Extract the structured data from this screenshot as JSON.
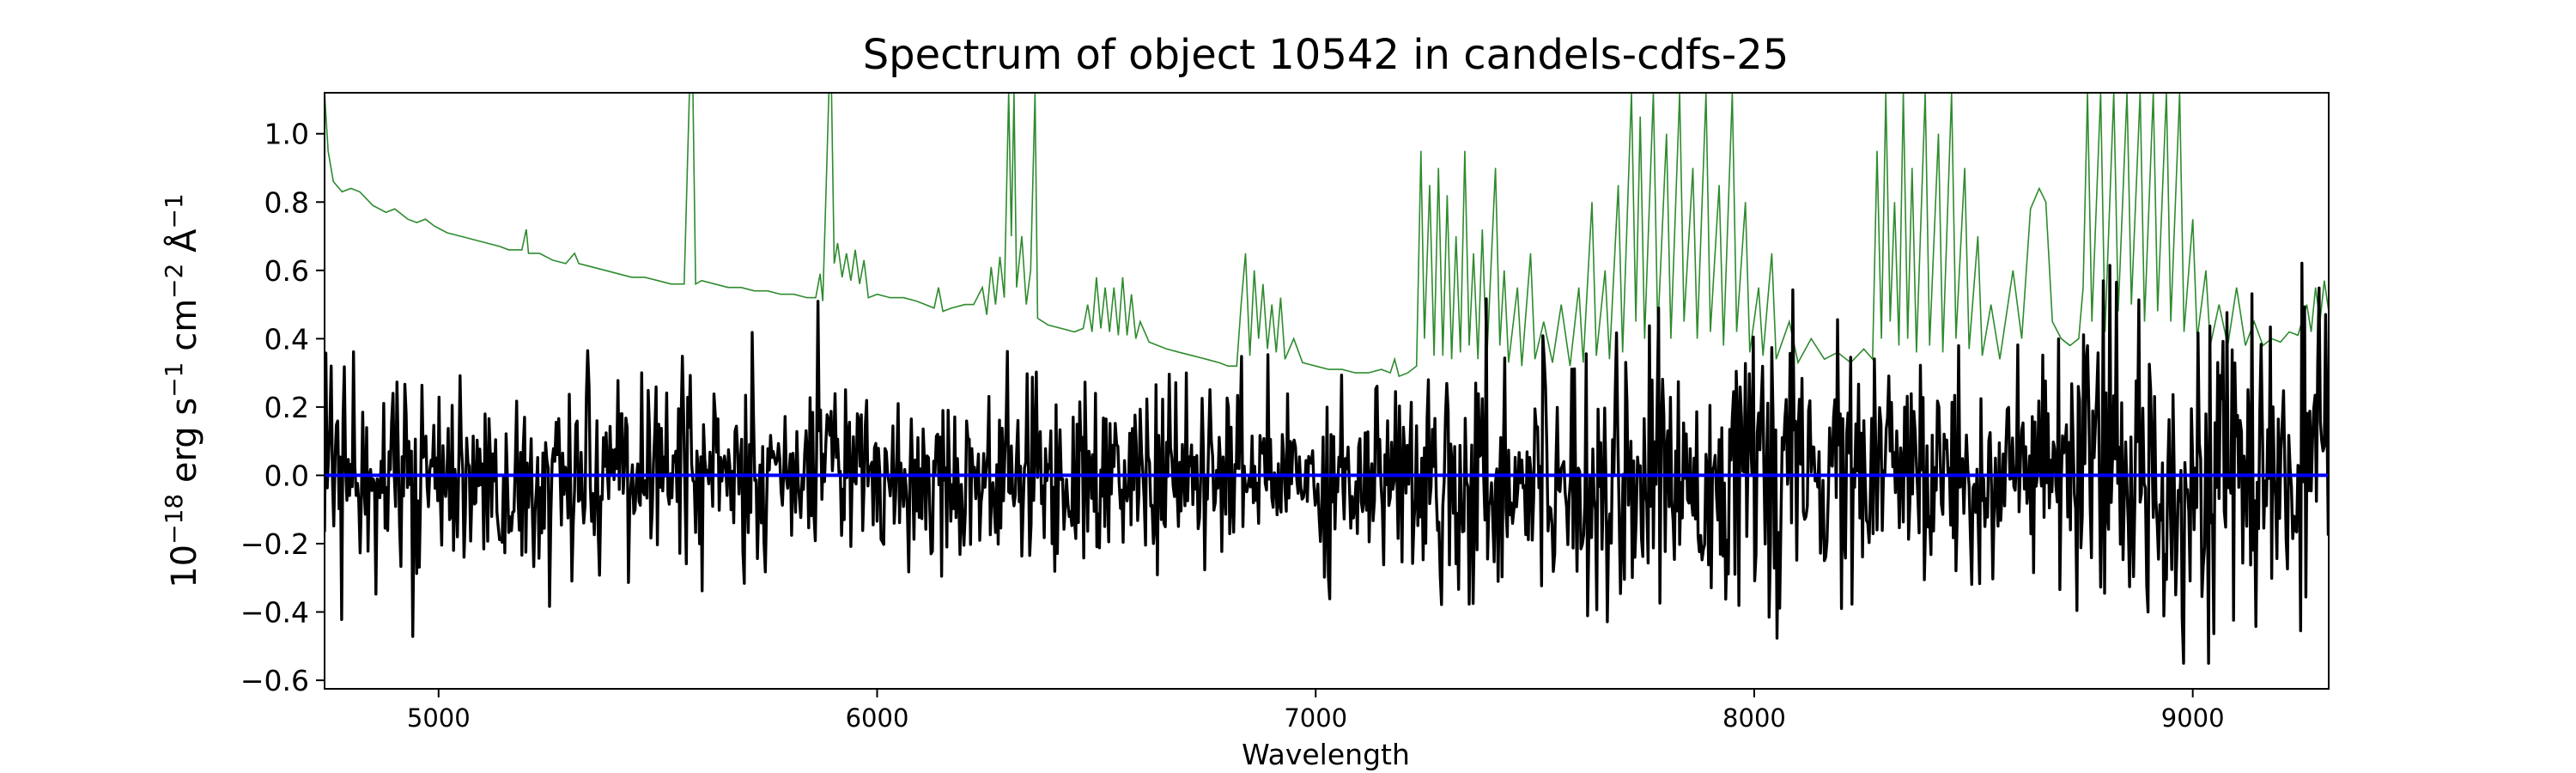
{
  "chart_data": {
    "type": "line",
    "title": "Spectrum of object 10542 in candels-cdfs-25",
    "xlabel": "Wavelength",
    "ylabel_parts": {
      "base": "10",
      "exp_base": "−18",
      "erg": " erg s",
      "exp_s": "−1",
      "cm": " cm",
      "exp_cm": "−2",
      "ang": " Å",
      "exp_ang": "−1"
    },
    "xlim": [
      4740,
      9310
    ],
    "ylim": [
      -0.625,
      1.12
    ],
    "x_ticks": [
      {
        "value": 5000,
        "label": "5000"
      },
      {
        "value": 6000,
        "label": "6000"
      },
      {
        "value": 7000,
        "label": "7000"
      },
      {
        "value": 8000,
        "label": "8000"
      },
      {
        "value": 9000,
        "label": "9000"
      }
    ],
    "y_ticks": [
      {
        "value": 1.0,
        "label": "1.0"
      },
      {
        "value": 0.8,
        "label": "0.8"
      },
      {
        "value": 0.6,
        "label": "0.6"
      },
      {
        "value": 0.4,
        "label": "0.4"
      },
      {
        "value": 0.2,
        "label": "0.2"
      },
      {
        "value": 0.0,
        "label": "0.0"
      },
      {
        "value": -0.2,
        "label": "−0.2"
      },
      {
        "value": -0.4,
        "label": "−0.4"
      },
      {
        "value": -0.6,
        "label": "−0.6"
      }
    ],
    "grid": false,
    "series": [
      {
        "color": "#2e8b2e",
        "points": [
          [
            4740,
            1.12
          ],
          [
            4748,
            0.95
          ],
          [
            4760,
            0.86
          ],
          [
            4780,
            0.83
          ],
          [
            4800,
            0.84
          ],
          [
            4820,
            0.83
          ],
          [
            4850,
            0.79
          ],
          [
            4880,
            0.77
          ],
          [
            4900,
            0.78
          ],
          [
            4930,
            0.75
          ],
          [
            4950,
            0.74
          ],
          [
            4970,
            0.75
          ],
          [
            4990,
            0.73
          ],
          [
            5020,
            0.71
          ],
          [
            5050,
            0.7
          ],
          [
            5080,
            0.69
          ],
          [
            5110,
            0.68
          ],
          [
            5140,
            0.67
          ],
          [
            5160,
            0.66
          ],
          [
            5190,
            0.66
          ],
          [
            5200,
            0.72
          ],
          [
            5205,
            0.65
          ],
          [
            5230,
            0.65
          ],
          [
            5260,
            0.63
          ],
          [
            5290,
            0.62
          ],
          [
            5310,
            0.65
          ],
          [
            5320,
            0.62
          ],
          [
            5350,
            0.61
          ],
          [
            5380,
            0.6
          ],
          [
            5410,
            0.59
          ],
          [
            5440,
            0.58
          ],
          [
            5470,
            0.58
          ],
          [
            5500,
            0.57
          ],
          [
            5530,
            0.56
          ],
          [
            5560,
            0.56
          ],
          [
            5572,
            1.12
          ],
          [
            5580,
            1.12
          ],
          [
            5586,
            0.56
          ],
          [
            5600,
            0.57
          ],
          [
            5630,
            0.56
          ],
          [
            5660,
            0.55
          ],
          [
            5690,
            0.55
          ],
          [
            5720,
            0.54
          ],
          [
            5750,
            0.54
          ],
          [
            5780,
            0.53
          ],
          [
            5810,
            0.53
          ],
          [
            5840,
            0.52
          ],
          [
            5860,
            0.52
          ],
          [
            5870,
            0.59
          ],
          [
            5876,
            0.51
          ],
          [
            5885,
            0.9
          ],
          [
            5890,
            1.12
          ],
          [
            5896,
            1.12
          ],
          [
            5902,
            0.62
          ],
          [
            5910,
            0.68
          ],
          [
            5920,
            0.58
          ],
          [
            5930,
            0.65
          ],
          [
            5940,
            0.57
          ],
          [
            5950,
            0.66
          ],
          [
            5960,
            0.56
          ],
          [
            5970,
            0.63
          ],
          [
            5980,
            0.52
          ],
          [
            6000,
            0.53
          ],
          [
            6030,
            0.52
          ],
          [
            6060,
            0.52
          ],
          [
            6090,
            0.51
          ],
          [
            6110,
            0.5
          ],
          [
            6130,
            0.49
          ],
          [
            6140,
            0.55
          ],
          [
            6150,
            0.48
          ],
          [
            6170,
            0.49
          ],
          [
            6200,
            0.5
          ],
          [
            6220,
            0.5
          ],
          [
            6240,
            0.55
          ],
          [
            6250,
            0.47
          ],
          [
            6260,
            0.61
          ],
          [
            6270,
            0.5
          ],
          [
            6280,
            0.64
          ],
          [
            6290,
            0.52
          ],
          [
            6300,
            1.12
          ],
          [
            6306,
            0.7
          ],
          [
            6312,
            1.12
          ],
          [
            6318,
            0.55
          ],
          [
            6330,
            0.7
          ],
          [
            6340,
            0.5
          ],
          [
            6350,
            0.6
          ],
          [
            6360,
            1.12
          ],
          [
            6366,
            0.46
          ],
          [
            6390,
            0.44
          ],
          [
            6420,
            0.43
          ],
          [
            6450,
            0.42
          ],
          [
            6470,
            0.43
          ],
          [
            6480,
            0.5
          ],
          [
            6490,
            0.42
          ],
          [
            6500,
            0.58
          ],
          [
            6510,
            0.43
          ],
          [
            6520,
            0.55
          ],
          [
            6530,
            0.42
          ],
          [
            6540,
            0.55
          ],
          [
            6550,
            0.41
          ],
          [
            6560,
            0.58
          ],
          [
            6570,
            0.41
          ],
          [
            6580,
            0.53
          ],
          [
            6590,
            0.4
          ],
          [
            6600,
            0.45
          ],
          [
            6620,
            0.39
          ],
          [
            6640,
            0.38
          ],
          [
            6660,
            0.37
          ],
          [
            6690,
            0.36
          ],
          [
            6720,
            0.35
          ],
          [
            6750,
            0.34
          ],
          [
            6780,
            0.33
          ],
          [
            6800,
            0.32
          ],
          [
            6820,
            0.32
          ],
          [
            6830,
            0.5
          ],
          [
            6840,
            0.65
          ],
          [
            6850,
            0.35
          ],
          [
            6860,
            0.6
          ],
          [
            6870,
            0.4
          ],
          [
            6880,
            0.56
          ],
          [
            6890,
            0.37
          ],
          [
            6900,
            0.5
          ],
          [
            6910,
            0.36
          ],
          [
            6920,
            0.52
          ],
          [
            6930,
            0.34
          ],
          [
            6950,
            0.4
          ],
          [
            6970,
            0.33
          ],
          [
            7000,
            0.32
          ],
          [
            7030,
            0.31
          ],
          [
            7060,
            0.31
          ],
          [
            7090,
            0.3
          ],
          [
            7120,
            0.3
          ],
          [
            7150,
            0.31
          ],
          [
            7170,
            0.3
          ],
          [
            7180,
            0.34
          ],
          [
            7190,
            0.29
          ],
          [
            7210,
            0.3
          ],
          [
            7230,
            0.32
          ],
          [
            7240,
            0.95
          ],
          [
            7248,
            0.4
          ],
          [
            7260,
            0.85
          ],
          [
            7270,
            0.35
          ],
          [
            7280,
            0.9
          ],
          [
            7290,
            0.35
          ],
          [
            7300,
            0.82
          ],
          [
            7310,
            0.34
          ],
          [
            7320,
            0.7
          ],
          [
            7330,
            0.36
          ],
          [
            7340,
            0.95
          ],
          [
            7350,
            0.38
          ],
          [
            7360,
            0.65
          ],
          [
            7370,
            0.34
          ],
          [
            7380,
            0.72
          ],
          [
            7390,
            0.33
          ],
          [
            7410,
            0.9
          ],
          [
            7420,
            0.38
          ],
          [
            7430,
            0.6
          ],
          [
            7440,
            0.33
          ],
          [
            7460,
            0.55
          ],
          [
            7470,
            0.32
          ],
          [
            7490,
            0.65
          ],
          [
            7500,
            0.34
          ],
          [
            7520,
            0.45
          ],
          [
            7540,
            0.33
          ],
          [
            7560,
            0.5
          ],
          [
            7580,
            0.32
          ],
          [
            7600,
            0.55
          ],
          [
            7610,
            0.33
          ],
          [
            7630,
            0.8
          ],
          [
            7640,
            0.35
          ],
          [
            7660,
            0.6
          ],
          [
            7670,
            0.34
          ],
          [
            7690,
            0.85
          ],
          [
            7700,
            0.36
          ],
          [
            7720,
            1.12
          ],
          [
            7730,
            0.45
          ],
          [
            7740,
            1.05
          ],
          [
            7750,
            0.4
          ],
          [
            7770,
            1.12
          ],
          [
            7780,
            0.42
          ],
          [
            7800,
            1.0
          ],
          [
            7810,
            0.4
          ],
          [
            7830,
            1.12
          ],
          [
            7840,
            0.45
          ],
          [
            7860,
            0.9
          ],
          [
            7870,
            0.4
          ],
          [
            7890,
            1.12
          ],
          [
            7900,
            0.42
          ],
          [
            7920,
            0.85
          ],
          [
            7930,
            0.38
          ],
          [
            7950,
            1.12
          ],
          [
            7960,
            0.42
          ],
          [
            7980,
            0.8
          ],
          [
            7990,
            0.36
          ],
          [
            8010,
            0.55
          ],
          [
            8020,
            0.35
          ],
          [
            8040,
            0.65
          ],
          [
            8050,
            0.34
          ],
          [
            8080,
            0.45
          ],
          [
            8100,
            0.33
          ],
          [
            8130,
            0.4
          ],
          [
            8160,
            0.34
          ],
          [
            8190,
            0.36
          ],
          [
            8220,
            0.33
          ],
          [
            8250,
            0.37
          ],
          [
            8270,
            0.34
          ],
          [
            8280,
            0.95
          ],
          [
            8290,
            0.4
          ],
          [
            8300,
            1.12
          ],
          [
            8310,
            0.45
          ],
          [
            8320,
            0.8
          ],
          [
            8330,
            0.38
          ],
          [
            8340,
            1.12
          ],
          [
            8350,
            0.4
          ],
          [
            8360,
            0.9
          ],
          [
            8370,
            0.36
          ],
          [
            8390,
            1.12
          ],
          [
            8400,
            0.38
          ],
          [
            8420,
            1.0
          ],
          [
            8430,
            0.36
          ],
          [
            8450,
            1.12
          ],
          [
            8460,
            0.4
          ],
          [
            8480,
            0.9
          ],
          [
            8490,
            0.37
          ],
          [
            8510,
            0.7
          ],
          [
            8520,
            0.35
          ],
          [
            8540,
            0.5
          ],
          [
            8560,
            0.34
          ],
          [
            8590,
            0.6
          ],
          [
            8610,
            0.4
          ],
          [
            8630,
            0.78
          ],
          [
            8650,
            0.84
          ],
          [
            8665,
            0.8
          ],
          [
            8680,
            0.45
          ],
          [
            8700,
            0.4
          ],
          [
            8720,
            0.38
          ],
          [
            8740,
            0.4
          ],
          [
            8750,
            0.55
          ],
          [
            8760,
            1.12
          ],
          [
            8770,
            0.45
          ],
          [
            8790,
            1.12
          ],
          [
            8800,
            0.42
          ],
          [
            8820,
            1.12
          ],
          [
            8830,
            0.48
          ],
          [
            8850,
            1.12
          ],
          [
            8860,
            0.5
          ],
          [
            8880,
            1.12
          ],
          [
            8890,
            0.45
          ],
          [
            8910,
            1.12
          ],
          [
            8920,
            0.48
          ],
          [
            8940,
            1.12
          ],
          [
            8950,
            0.45
          ],
          [
            8970,
            1.12
          ],
          [
            8980,
            0.42
          ],
          [
            9000,
            0.75
          ],
          [
            9010,
            0.4
          ],
          [
            9030,
            0.6
          ],
          [
            9040,
            0.38
          ],
          [
            9060,
            0.5
          ],
          [
            9080,
            0.38
          ],
          [
            9100,
            0.55
          ],
          [
            9120,
            0.38
          ],
          [
            9140,
            0.45
          ],
          [
            9160,
            0.38
          ],
          [
            9180,
            0.4
          ],
          [
            9200,
            0.39
          ],
          [
            9220,
            0.42
          ],
          [
            9240,
            0.41
          ],
          [
            9260,
            0.5
          ],
          [
            9270,
            0.42
          ],
          [
            9280,
            0.55
          ],
          [
            9290,
            0.45
          ],
          [
            9300,
            0.57
          ],
          [
            9310,
            0.48
          ]
        ]
      },
      {
        "color": "#000000",
        "seed": 10542,
        "x_start": 4740,
        "x_end": 9310,
        "step": 3
      },
      {
        "color": "#0000ff",
        "points": [
          [
            4740,
            0.0
          ],
          [
            9310,
            0.0
          ]
        ]
      }
    ]
  }
}
